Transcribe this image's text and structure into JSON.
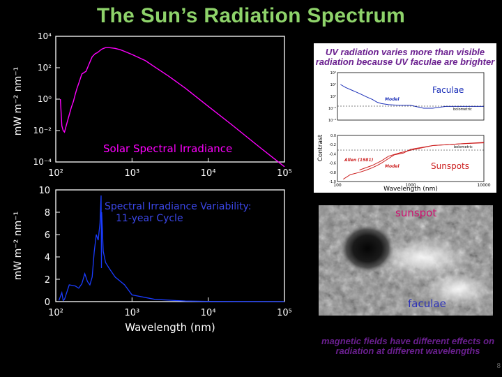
{
  "slide_title": "The Sun’s Radiation Spectrum",
  "chart_data": [
    {
      "type": "line",
      "title": "Solar Spectral Irradiance",
      "xlabel": "",
      "ylabel": "mW m⁻² nm⁻¹",
      "xscale": "log",
      "yscale": "log",
      "xlim": [
        100,
        100000
      ],
      "ylim": [
        0.0001,
        10000
      ],
      "x_ticks": [
        "10²",
        "10³",
        "10⁴",
        "10⁵"
      ],
      "y_ticks": [
        "10⁻⁴",
        "10⁻²",
        "10⁰",
        "10²",
        "10⁴"
      ],
      "series": [
        {
          "color": "#ff00ff",
          "x": [
            115,
            120,
            125,
            130,
            140,
            150,
            160,
            170,
            180,
            190,
            200,
            220,
            250,
            270,
            300,
            330,
            350,
            400,
            450,
            500,
            600,
            700,
            800,
            1000,
            1500,
            2000,
            3000,
            5000,
            10000,
            20000,
            50000,
            100000
          ],
          "y": [
            1,
            0.02,
            0.01,
            0.008,
            0.03,
            0.1,
            0.3,
            0.7,
            2,
            5,
            10,
            40,
            60,
            150,
            500,
            800,
            900,
            1500,
            1900,
            1900,
            1700,
            1400,
            1100,
            700,
            280,
            110,
            30,
            5,
            0.35,
            0.025,
            0.0007,
            5e-05
          ]
        }
      ],
      "grid": false,
      "legend": "none"
    },
    {
      "type": "line",
      "title": "Spectral Irradiance Variability:\n11-year Cycle",
      "xlabel": "Wavelength (nm)",
      "ylabel": "mW m⁻² nm⁻¹",
      "xscale": "log",
      "xlim": [
        100,
        100000
      ],
      "ylim": [
        0,
        10
      ],
      "x_ticks": [
        "10²",
        "10³",
        "10⁴",
        "10⁵"
      ],
      "y_ticks": [
        "0",
        "2",
        "4",
        "6",
        "8",
        "10"
      ],
      "series": [
        {
          "color": "#1a3cff",
          "x": [
            110,
            120,
            125,
            130,
            150,
            180,
            200,
            220,
            240,
            260,
            280,
            300,
            320,
            340,
            360,
            380,
            393,
            397,
            400,
            420,
            450,
            500,
            600,
            800,
            1000,
            2000,
            5000,
            10000,
            100000
          ],
          "y": [
            0.1,
            0.8,
            0.1,
            0.2,
            1.5,
            1.4,
            1.2,
            1.6,
            2.5,
            1.8,
            1.5,
            2.2,
            4.5,
            6.0,
            5.5,
            7.0,
            9.5,
            3.0,
            8.0,
            4.5,
            3.5,
            3.0,
            2.2,
            1.5,
            0.6,
            0.2,
            0.05,
            0.02,
            0.0
          ]
        }
      ],
      "grid": false,
      "legend": "none"
    },
    {
      "type": "line",
      "title": "Faculae",
      "xlabel": "",
      "ylabel": "Contrast",
      "xscale": "log",
      "yscale": "log",
      "xlim": [
        100,
        10000
      ],
      "ylim": [
        0.0001,
        10000
      ],
      "y_ticks": [
        "10⁻⁴",
        "10⁻²",
        "10⁰",
        "10²",
        "10⁴"
      ],
      "annotations": [
        "Model",
        "bolometric"
      ],
      "series": [
        {
          "color": "#1b2fb8",
          "x": [
            110,
            130,
            160,
            200,
            250,
            300,
            350,
            400,
            500,
            700,
            1000,
            1500,
            2000,
            3000,
            5000,
            10000
          ],
          "y": [
            100,
            30,
            10,
            3,
            0.8,
            0.3,
            0.1,
            0.06,
            0.04,
            0.03,
            0.03,
            0.01,
            0.01,
            0.02,
            0.02,
            0.02
          ]
        }
      ]
    },
    {
      "type": "line",
      "title": "Sunspots",
      "xlabel": "Wavelength (nm)",
      "ylabel": "",
      "xscale": "log",
      "xlim": [
        100,
        10000
      ],
      "ylim": [
        -1.0,
        0.0
      ],
      "x_ticks": [
        "100",
        "1000",
        "10000"
      ],
      "y_ticks": [
        "0.0",
        "-0.2",
        "-0.4",
        "-0.6",
        "-0.8",
        "-1.0"
      ],
      "annotations": [
        "Allen (1981)",
        "Model",
        "bolometric"
      ],
      "series": [
        {
          "name": "Allen (1981)",
          "color": "#cc2020",
          "x": [
            120,
            150,
            200,
            250,
            300,
            350,
            400,
            500,
            600,
            800,
            1000,
            2000,
            5000,
            10000
          ],
          "y": [
            -0.95,
            -0.85,
            -0.8,
            -0.75,
            -0.7,
            -0.65,
            -0.6,
            -0.5,
            -0.42,
            -0.38,
            -0.3,
            -0.22,
            -0.18,
            -0.15
          ]
        },
        {
          "name": "Model",
          "color": "#cc2020",
          "x": [
            200,
            300,
            400,
            500,
            700,
            1000,
            2000,
            5000,
            10000
          ],
          "y": [
            -0.75,
            -0.65,
            -0.55,
            -0.45,
            -0.38,
            -0.32,
            -0.22,
            -0.18,
            -0.16
          ]
        }
      ]
    }
  ],
  "right_caption_top": "UV radiation varies more than visible radiation because UV faculae are brighter",
  "photo_labels": {
    "sunspot": "sunspot",
    "faculae": "faculae"
  },
  "right_caption_bottom": "magnetic fields have different effects on radiation at different wavelengths",
  "page_number": "8",
  "colors": {
    "title": "#8ed36a",
    "spectrum": "#ff00ff",
    "variability": "#1a3cff",
    "caption": "#6a1f8f"
  }
}
